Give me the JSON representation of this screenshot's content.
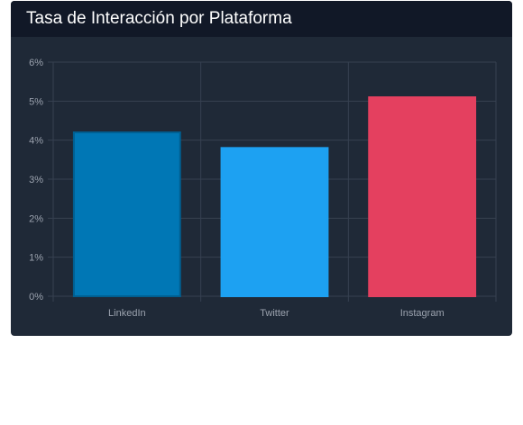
{
  "chart_data": {
    "type": "bar",
    "title": "Tasa de Interacción por Plataforma",
    "categories": [
      "LinkedIn",
      "Twitter",
      "Instagram"
    ],
    "values": [
      4.2,
      3.8,
      5.1
    ],
    "unit": "%",
    "ylim": [
      0,
      6
    ],
    "yticks": [
      "0%",
      "1%",
      "2%",
      "3%",
      "4%",
      "5%",
      "6%"
    ],
    "colors": [
      "#0077b5",
      "#1da1f2",
      "#e4405f"
    ],
    "border_colors": [
      "#005f91",
      "#1da1f2",
      "#e4405f"
    ],
    "grid": true,
    "legend": "none",
    "background": "#1f2937",
    "header_background": "#111827",
    "grid_color": "#374151",
    "tick_color": "#9ca3af"
  }
}
